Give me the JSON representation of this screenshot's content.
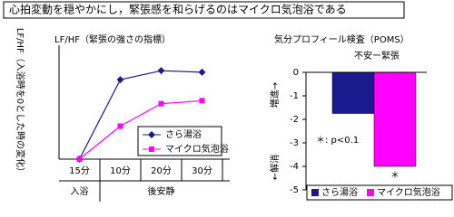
{
  "title": "心拍変動を穏やかにし，緊張感を和らげるのはマイクロ気泡浴である",
  "chart_data": [
    {
      "type": "line",
      "title": "LF/HF（緊張の強さの指標）",
      "y_label": "LF/HF（入浴時を0とした時の変化）",
      "categories": [
        "15分",
        "10分",
        "20分",
        "30分"
      ],
      "category_groups": [
        "入浴",
        "後安静"
      ],
      "series": [
        {
          "name": "さら湯浴",
          "color": "#1a1a8c",
          "marker": "diamond",
          "values": [
            0,
            2.65,
            2.95,
            2.9
          ]
        },
        {
          "name": "マイクロ気泡浴",
          "color": "#ff00ff",
          "marker": "square",
          "values": [
            0,
            1.1,
            1.85,
            1.95
          ]
        }
      ],
      "ylim": [
        0,
        3.8
      ],
      "legend": "lower right"
    },
    {
      "type": "bar",
      "title": "気分プロフィール検査（POMS）",
      "subtitle": "不安ー緊張",
      "y_label_up": "増進→",
      "y_label_down": "←解消",
      "series": [
        {
          "name": "さら湯浴",
          "color": "#1a1a8c",
          "values": [
            -1.75
          ]
        },
        {
          "name": "マイクロ気泡浴",
          "color": "#ff00ff",
          "values": [
            -4.0
          ]
        }
      ],
      "annotations": [
        "＊: p<0.1",
        "＊"
      ],
      "ylim": [
        -5,
        0
      ],
      "yticks": [
        0,
        -1,
        -2,
        -3,
        -4,
        -5
      ],
      "legend": "bottom"
    }
  ]
}
